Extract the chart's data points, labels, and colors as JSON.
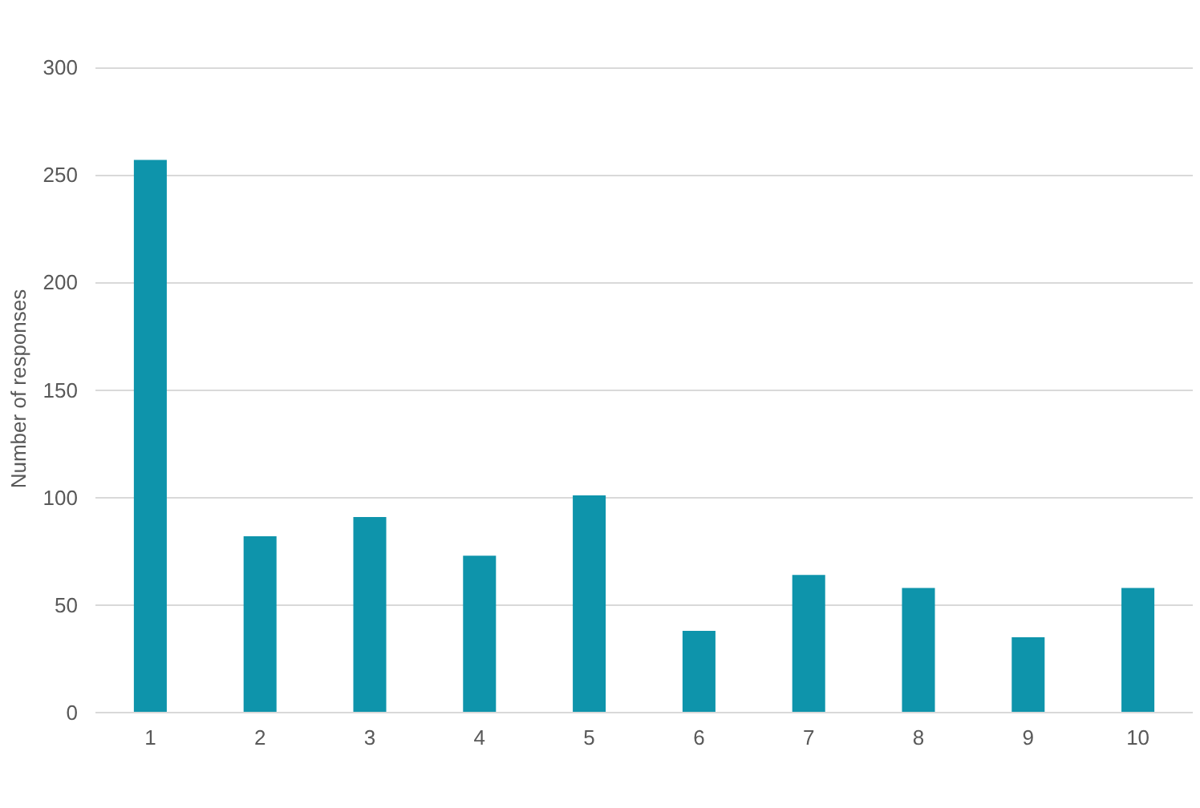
{
  "chart_data": {
    "type": "bar",
    "ylabel": "Number of responses",
    "categories": [
      "1",
      "2",
      "3",
      "4",
      "5",
      "6",
      "7",
      "8",
      "9",
      "10"
    ],
    "values": [
      257,
      82,
      91,
      73,
      101,
      38,
      64,
      58,
      35,
      58
    ],
    "color": "#0e94ab",
    "ylim": [
      0,
      300
    ],
    "yticks": [
      0,
      50,
      100,
      150,
      200,
      250,
      300
    ],
    "grid": "y"
  }
}
